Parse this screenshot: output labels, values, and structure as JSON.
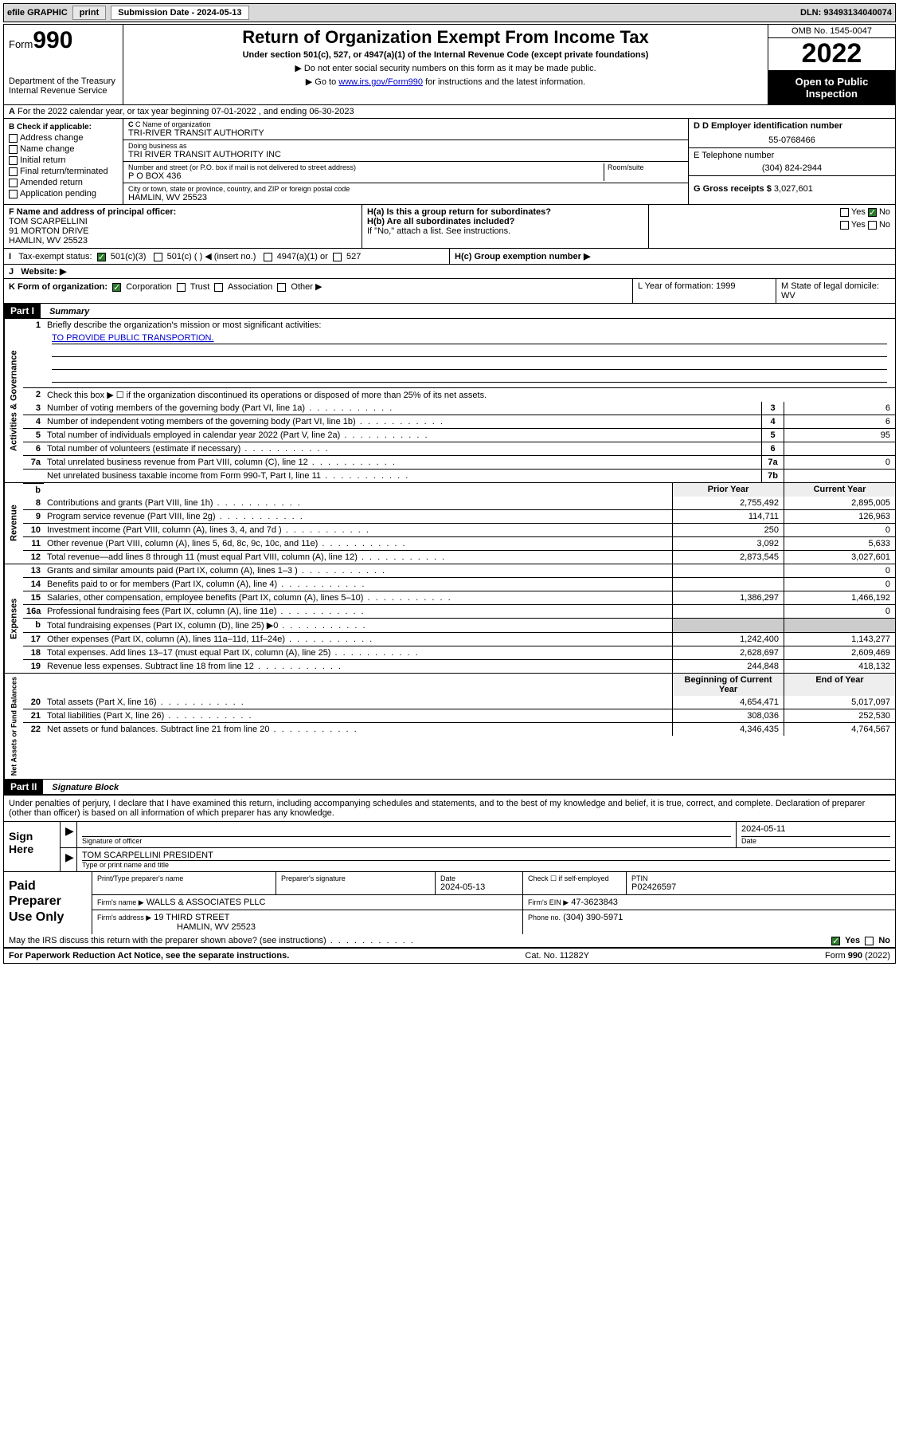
{
  "topbar": {
    "efile": "efile GRAPHIC",
    "print": "print",
    "subdate_label": "Submission Date - 2024-05-13",
    "dln": "DLN: 93493134040074"
  },
  "header": {
    "form_word": "Form",
    "form_num": "990",
    "dept": "Department of the Treasury",
    "irs": "Internal Revenue Service",
    "title": "Return of Organization Exempt From Income Tax",
    "sub1": "Under section 501(c), 527, or 4947(a)(1) of the Internal Revenue Code (except private foundations)",
    "sub2": "▶ Do not enter social security numbers on this form as it may be made public.",
    "sub3_pre": "▶ Go to ",
    "sub3_link": "www.irs.gov/Form990",
    "sub3_post": " for instructions and the latest information.",
    "omb": "OMB No. 1545-0047",
    "year": "2022",
    "open": "Open to Public Inspection"
  },
  "lineA": "For the 2022 calendar year, or tax year beginning 07-01-2022    , and ending 06-30-2023",
  "colB": {
    "hdr": "B Check if applicable:",
    "items": [
      "Address change",
      "Name change",
      "Initial return",
      "Final return/terminated",
      "Amended return",
      "Application pending"
    ]
  },
  "colC": {
    "name_label": "C Name of organization",
    "name": "TRI-RIVER TRANSIT AUTHORITY",
    "dba_label": "Doing business as",
    "dba": "TRI RIVER TRANSIT AUTHORITY INC",
    "addr_label": "Number and street (or P.O. box if mail is not delivered to street address)",
    "room_label": "Room/suite",
    "addr": "P O BOX 436",
    "city_label": "City or town, state or province, country, and ZIP or foreign postal code",
    "city": "HAMLIN, WV  25523"
  },
  "colD": {
    "ein_label": "D Employer identification number",
    "ein": "55-0768466",
    "phone_label": "E Telephone number",
    "phone": "(304) 824-2944",
    "gross_label": "G Gross receipts $",
    "gross": "3,027,601"
  },
  "rowF": {
    "label": "F  Name and address of principal officer:",
    "name": "TOM SCARPELLINI",
    "addr1": "91 MORTON DRIVE",
    "addr2": "HAMLIN, WV  25523"
  },
  "rowH": {
    "ha": "H(a)  Is this a group return for subordinates?",
    "hb": "H(b)  Are all subordinates included?",
    "hnote": "If \"No,\" attach a list. See instructions.",
    "hc": "H(c)  Group exemption number ▶",
    "yes": "Yes",
    "no": "No"
  },
  "rowI": {
    "label": "Tax-exempt status:",
    "opt1": "501(c)(3)",
    "opt2": "501(c) (  ) ◀ (insert no.)",
    "opt3": "4947(a)(1) or",
    "opt4": "527"
  },
  "rowJ": {
    "label": "Website: ▶"
  },
  "rowK": {
    "label": "K Form of organization:",
    "opts": [
      "Corporation",
      "Trust",
      "Association",
      "Other ▶"
    ],
    "L": "L Year of formation: 1999",
    "M": "M State of legal domicile: WV"
  },
  "part1": {
    "hdr": "Part I",
    "title": "Summary"
  },
  "summary": {
    "q1": "Briefly describe the organization's mission or most significant activities:",
    "mission": "TO PROVIDE PUBLIC TRANSPORTION.",
    "q2": "Check this box ▶ ☐  if the organization discontinued its operations or disposed of more than 25% of its net assets.",
    "rows_gov": [
      {
        "n": "3",
        "t": "Number of voting members of the governing body (Part VI, line 1a)",
        "b": "3",
        "v": "6"
      },
      {
        "n": "4",
        "t": "Number of independent voting members of the governing body (Part VI, line 1b)",
        "b": "4",
        "v": "6"
      },
      {
        "n": "5",
        "t": "Total number of individuals employed in calendar year 2022 (Part V, line 2a)",
        "b": "5",
        "v": "95"
      },
      {
        "n": "6",
        "t": "Total number of volunteers (estimate if necessary)",
        "b": "6",
        "v": ""
      },
      {
        "n": "7a",
        "t": "Total unrelated business revenue from Part VIII, column (C), line 12",
        "b": "7a",
        "v": "0"
      },
      {
        "n": "",
        "t": "Net unrelated business taxable income from Form 990-T, Part I, line 11",
        "b": "7b",
        "v": ""
      }
    ],
    "col_hdr": {
      "prior": "Prior Year",
      "curr": "Current Year",
      "beg": "Beginning of Current Year",
      "end": "End of Year"
    },
    "rev": [
      {
        "n": "8",
        "t": "Contributions and grants (Part VIII, line 1h)",
        "p": "2,755,492",
        "c": "2,895,005"
      },
      {
        "n": "9",
        "t": "Program service revenue (Part VIII, line 2g)",
        "p": "114,711",
        "c": "126,963"
      },
      {
        "n": "10",
        "t": "Investment income (Part VIII, column (A), lines 3, 4, and 7d )",
        "p": "250",
        "c": "0"
      },
      {
        "n": "11",
        "t": "Other revenue (Part VIII, column (A), lines 5, 6d, 8c, 9c, 10c, and 11e)",
        "p": "3,092",
        "c": "5,633"
      },
      {
        "n": "12",
        "t": "Total revenue—add lines 8 through 11 (must equal Part VIII, column (A), line 12)",
        "p": "2,873,545",
        "c": "3,027,601"
      }
    ],
    "exp": [
      {
        "n": "13",
        "t": "Grants and similar amounts paid (Part IX, column (A), lines 1–3 )",
        "p": "",
        "c": "0"
      },
      {
        "n": "14",
        "t": "Benefits paid to or for members (Part IX, column (A), line 4)",
        "p": "",
        "c": "0"
      },
      {
        "n": "15",
        "t": "Salaries, other compensation, employee benefits (Part IX, column (A), lines 5–10)",
        "p": "1,386,297",
        "c": "1,466,192"
      },
      {
        "n": "16a",
        "t": "Professional fundraising fees (Part IX, column (A), line 11e)",
        "p": "",
        "c": "0"
      },
      {
        "n": "b",
        "t": "Total fundraising expenses (Part IX, column (D), line 25) ▶0",
        "p": "grey",
        "c": "grey"
      },
      {
        "n": "17",
        "t": "Other expenses (Part IX, column (A), lines 11a–11d, 11f–24e)",
        "p": "1,242,400",
        "c": "1,143,277"
      },
      {
        "n": "18",
        "t": "Total expenses. Add lines 13–17 (must equal Part IX, column (A), line 25)",
        "p": "2,628,697",
        "c": "2,609,469"
      },
      {
        "n": "19",
        "t": "Revenue less expenses. Subtract line 18 from line 12",
        "p": "244,848",
        "c": "418,132"
      }
    ],
    "net": [
      {
        "n": "20",
        "t": "Total assets (Part X, line 16)",
        "p": "4,654,471",
        "c": "5,017,097"
      },
      {
        "n": "21",
        "t": "Total liabilities (Part X, line 26)",
        "p": "308,036",
        "c": "252,530"
      },
      {
        "n": "22",
        "t": "Net assets or fund balances. Subtract line 21 from line 20",
        "p": "4,346,435",
        "c": "4,764,567"
      }
    ]
  },
  "vtabs": {
    "gov": "Activities & Governance",
    "rev": "Revenue",
    "exp": "Expenses",
    "net": "Net Assets or Fund Balances"
  },
  "part2": {
    "hdr": "Part II",
    "title": "Signature Block"
  },
  "sig": {
    "decl": "Under penalties of perjury, I declare that I have examined this return, including accompanying schedules and statements, and to the best of my knowledge and belief, it is true, correct, and complete. Declaration of preparer (other than officer) is based on all information of which preparer has any knowledge.",
    "sign_here": "Sign Here",
    "sig_officer": "Signature of officer",
    "date": "Date",
    "sig_date": "2024-05-11",
    "officer": "TOM SCARPELLINI PRESIDENT",
    "type_name": "Type or print name and title",
    "paid": "Paid Preparer Use Only",
    "prep_name_label": "Print/Type preparer's name",
    "prep_sig_label": "Preparer's signature",
    "prep_date_label": "Date",
    "prep_date": "2024-05-13",
    "check_self": "Check ☐ if self-employed",
    "ptin_label": "PTIN",
    "ptin": "P02426597",
    "firm_name_label": "Firm's name     ▶",
    "firm_name": "WALLS & ASSOCIATES PLLC",
    "firm_ein_label": "Firm's EIN ▶",
    "firm_ein": "47-3623843",
    "firm_addr_label": "Firm's address ▶",
    "firm_addr1": "19 THIRD STREET",
    "firm_addr2": "HAMLIN, WV  25523",
    "firm_phone_label": "Phone no.",
    "firm_phone": "(304) 390-5971",
    "may_irs": "May the IRS discuss this return with the preparer shown above? (see instructions)"
  },
  "footer": {
    "left": "For Paperwork Reduction Act Notice, see the separate instructions.",
    "mid": "Cat. No. 11282Y",
    "right": "Form 990 (2022)"
  }
}
